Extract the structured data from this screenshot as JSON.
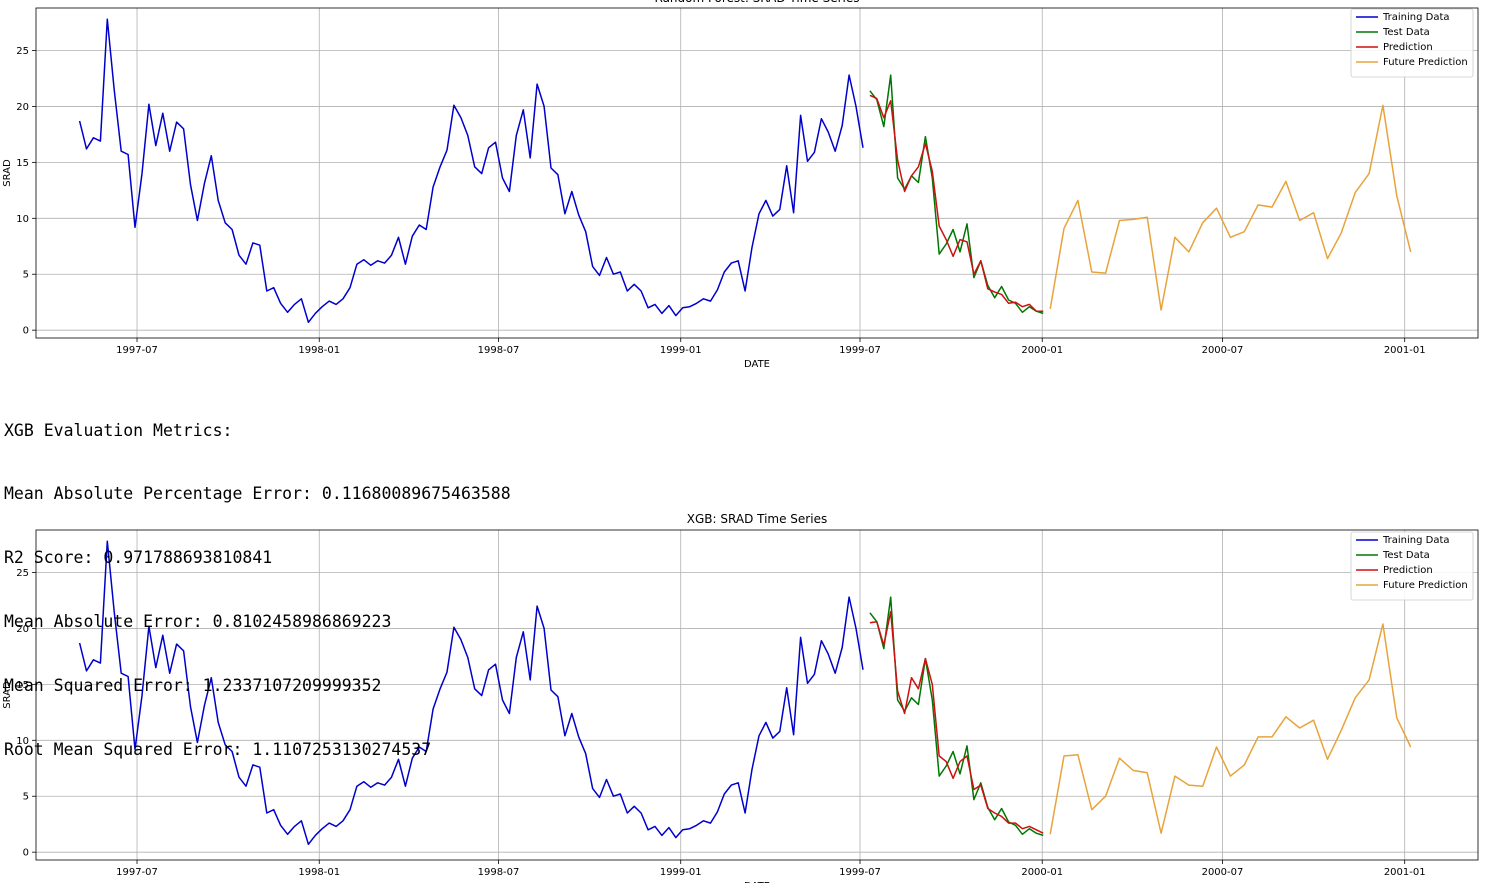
{
  "metrics": {
    "heading": "XGB Evaluation Metrics:",
    "lines": [
      "Mean Absolute Percentage Error: 0.11680089675463588",
      "R2 Score: 0.971788693810841",
      "Mean Absolute Error: 0.8102458986869223",
      "Mean Squared Error: 1.2337107209999352",
      "Root Mean Squared Error: 1.1107253130274537"
    ]
  },
  "chart_data": [
    {
      "type": "line",
      "title": "Random Forest: SRAD Time Series",
      "xlabel": "DATE",
      "ylabel": "SRAD",
      "xlim": [
        "1997-03-21",
        "2001-03-16"
      ],
      "ylim": [
        -0.7,
        28.8
      ],
      "x_ticks": [
        "1997-07",
        "1998-01",
        "1998-07",
        "1999-01",
        "1999-07",
        "2000-01",
        "2000-07",
        "2001-01"
      ],
      "y_ticks": [
        0,
        5,
        10,
        15,
        20,
        25
      ],
      "grid": true,
      "legend": "top-right",
      "series": [
        {
          "name": "Training Data",
          "color": "#0000cc",
          "x": [
            "1997-05-04",
            "1997-05-11",
            "1997-05-18",
            "1997-05-25",
            "1997-06-01",
            "1997-06-08",
            "1997-06-15",
            "1997-06-22",
            "1997-06-29",
            "1997-07-06",
            "1997-07-13",
            "1997-07-20",
            "1997-07-27",
            "1997-08-03",
            "1997-08-10",
            "1997-08-17",
            "1997-08-24",
            "1997-08-31",
            "1997-09-07",
            "1997-09-14",
            "1997-09-21",
            "1997-09-28",
            "1997-10-05",
            "1997-10-12",
            "1997-10-19",
            "1997-10-26",
            "1997-11-02",
            "1997-11-09",
            "1997-11-16",
            "1997-11-23",
            "1997-11-30",
            "1997-12-07",
            "1997-12-14",
            "1997-12-21",
            "1997-12-28",
            "1998-01-04",
            "1998-01-11",
            "1998-01-18",
            "1998-01-25",
            "1998-02-01",
            "1998-02-08",
            "1998-02-15",
            "1998-02-22",
            "1998-03-01",
            "1998-03-08",
            "1998-03-15",
            "1998-03-22",
            "1998-03-29",
            "1998-04-05",
            "1998-04-12",
            "1998-04-19",
            "1998-04-26",
            "1998-05-03",
            "1998-05-10",
            "1998-05-17",
            "1998-05-24",
            "1998-05-31",
            "1998-06-07",
            "1998-06-14",
            "1998-06-21",
            "1998-06-28",
            "1998-07-05",
            "1998-07-12",
            "1998-07-19",
            "1998-07-26",
            "1998-08-02",
            "1998-08-09",
            "1998-08-16",
            "1998-08-23",
            "1998-08-30",
            "1998-09-06",
            "1998-09-13",
            "1998-09-20",
            "1998-09-27",
            "1998-10-04",
            "1998-10-11",
            "1998-10-18",
            "1998-10-25",
            "1998-11-01",
            "1998-11-08",
            "1998-11-15",
            "1998-11-22",
            "1998-11-29",
            "1998-12-06",
            "1998-12-13",
            "1998-12-20",
            "1998-12-27",
            "1999-01-03",
            "1999-01-10",
            "1999-01-17",
            "1999-01-24",
            "1999-01-31",
            "1999-02-07",
            "1999-02-14",
            "1999-02-21",
            "1999-02-28",
            "1999-03-07",
            "1999-03-14",
            "1999-03-21",
            "1999-03-28",
            "1999-04-04",
            "1999-04-11",
            "1999-04-18",
            "1999-04-25",
            "1999-05-02",
            "1999-05-09",
            "1999-05-16",
            "1999-05-23",
            "1999-05-30",
            "1999-06-06",
            "1999-06-13",
            "1999-06-20",
            "1999-06-27",
            "1999-07-04"
          ],
          "y": [
            18.7,
            16.2,
            17.2,
            16.9,
            27.8,
            21.5,
            16.0,
            15.7,
            9.2,
            14.0,
            20.2,
            16.5,
            19.4,
            16.0,
            18.6,
            18.0,
            13.0,
            9.8,
            13.1,
            15.6,
            11.6,
            9.6,
            9.0,
            6.7,
            5.9,
            7.8,
            7.6,
            3.5,
            3.8,
            2.4,
            1.6,
            2.3,
            2.8,
            0.7,
            1.5,
            2.1,
            2.6,
            2.3,
            2.8,
            3.8,
            5.9,
            6.3,
            5.8,
            6.2,
            6.0,
            6.7,
            8.3,
            5.9,
            8.4,
            9.4,
            9.0,
            12.8,
            14.6,
            16.1,
            20.1,
            19.0,
            17.4,
            14.6,
            14.0,
            16.3,
            16.8,
            13.6,
            12.4,
            17.4,
            19.7,
            15.4,
            22.0,
            20.0,
            14.5,
            13.9,
            10.4,
            12.4,
            10.3,
            8.8,
            5.7,
            4.9,
            6.5,
            5.0,
            5.2,
            3.5,
            4.1,
            3.5,
            2.0,
            2.3,
            1.5,
            2.2,
            1.3,
            2.0,
            2.1,
            2.4,
            2.8,
            2.6,
            3.6,
            5.2,
            6.0,
            6.2,
            3.5,
            7.4,
            10.4,
            11.6,
            10.2,
            10.8,
            14.7,
            10.5,
            19.2,
            15.1,
            15.9,
            18.9,
            17.7,
            16.0,
            18.3,
            22.8,
            20.0,
            16.3
          ]
        },
        {
          "name": "Test Data",
          "color": "#007700",
          "x": [
            "1999-07-11",
            "1999-07-18",
            "1999-07-25",
            "1999-08-01",
            "1999-08-08",
            "1999-08-15",
            "1999-08-22",
            "1999-08-29",
            "1999-09-05",
            "1999-09-12",
            "1999-09-19",
            "1999-09-26",
            "1999-10-03",
            "1999-10-10",
            "1999-10-17",
            "1999-10-24",
            "1999-10-31",
            "1999-11-07",
            "1999-11-14",
            "1999-11-21",
            "1999-11-28",
            "1999-12-05",
            "1999-12-12",
            "1999-12-19",
            "1999-12-26",
            "2000-01-02"
          ],
          "y": [
            21.4,
            20.6,
            18.2,
            22.8,
            13.6,
            12.6,
            13.8,
            13.2,
            17.3,
            13.6,
            6.8,
            7.7,
            9.0,
            7.0,
            9.5,
            4.7,
            6.2,
            4.0,
            2.9,
            3.9,
            2.7,
            2.4,
            1.6,
            2.1,
            1.7,
            1.5
          ]
        },
        {
          "name": "Prediction",
          "color": "#cc1111",
          "x": [
            "1999-07-11",
            "1999-07-18",
            "1999-07-25",
            "1999-08-01",
            "1999-08-08",
            "1999-08-15",
            "1999-08-22",
            "1999-08-29",
            "1999-09-05",
            "1999-09-12",
            "1999-09-19",
            "1999-09-26",
            "1999-10-03",
            "1999-10-10",
            "1999-10-17",
            "1999-10-24",
            "1999-10-31",
            "1999-11-07",
            "1999-11-14",
            "1999-11-21",
            "1999-11-28",
            "1999-12-05",
            "1999-12-12",
            "1999-12-19",
            "1999-12-26",
            "2000-01-02"
          ],
          "y": [
            21.0,
            20.7,
            19.0,
            20.5,
            15.2,
            12.4,
            13.8,
            14.6,
            16.7,
            14.2,
            9.3,
            8.1,
            6.6,
            8.1,
            7.9,
            5.0,
            6.2,
            3.7,
            3.4,
            3.2,
            2.4,
            2.5,
            2.1,
            2.3,
            1.7,
            1.7
          ]
        },
        {
          "name": "Future Prediction",
          "color": "#e8a33b",
          "x": [
            "2000-01-09",
            "2000-01-23",
            "2000-02-06",
            "2000-02-20",
            "2000-03-05",
            "2000-03-19",
            "2000-04-02",
            "2000-04-16",
            "2000-04-30",
            "2000-05-14",
            "2000-05-28",
            "2000-06-11",
            "2000-06-25",
            "2000-07-09",
            "2000-07-23",
            "2000-08-06",
            "2000-08-20",
            "2000-09-03",
            "2000-09-17",
            "2000-10-01",
            "2000-10-15",
            "2000-10-29",
            "2000-11-12",
            "2000-11-26",
            "2000-12-10",
            "2000-12-24",
            "2001-01-07"
          ],
          "y": [
            1.9,
            9.1,
            11.6,
            5.2,
            5.1,
            9.8,
            9.9,
            10.1,
            1.8,
            8.3,
            7.0,
            9.6,
            10.9,
            8.3,
            8.8,
            11.2,
            11.0,
            13.3,
            9.8,
            10.5,
            6.4,
            8.7,
            12.3,
            14.0,
            20.1,
            12.0,
            7.0
          ]
        }
      ]
    },
    {
      "type": "line",
      "title": "XGB: SRAD Time Series",
      "xlabel": "DATE",
      "ylabel": "SRAD",
      "xlim": [
        "1997-03-21",
        "2001-03-16"
      ],
      "ylim": [
        -0.7,
        28.8
      ],
      "x_ticks": [
        "1997-07",
        "1998-01",
        "1998-07",
        "1999-01",
        "1999-07",
        "2000-01",
        "2000-07",
        "2001-01"
      ],
      "y_ticks": [
        0,
        5,
        10,
        15,
        20,
        25
      ],
      "grid": true,
      "legend": "top-right",
      "series": [
        {
          "name": "Training Data",
          "color": "#0000cc",
          "x": [
            "1997-05-04",
            "1997-05-11",
            "1997-05-18",
            "1997-05-25",
            "1997-06-01",
            "1997-06-08",
            "1997-06-15",
            "1997-06-22",
            "1997-06-29",
            "1997-07-06",
            "1997-07-13",
            "1997-07-20",
            "1997-07-27",
            "1997-08-03",
            "1997-08-10",
            "1997-08-17",
            "1997-08-24",
            "1997-08-31",
            "1997-09-07",
            "1997-09-14",
            "1997-09-21",
            "1997-09-28",
            "1997-10-05",
            "1997-10-12",
            "1997-10-19",
            "1997-10-26",
            "1997-11-02",
            "1997-11-09",
            "1997-11-16",
            "1997-11-23",
            "1997-11-30",
            "1997-12-07",
            "1997-12-14",
            "1997-12-21",
            "1997-12-28",
            "1998-01-04",
            "1998-01-11",
            "1998-01-18",
            "1998-01-25",
            "1998-02-01",
            "1998-02-08",
            "1998-02-15",
            "1998-02-22",
            "1998-03-01",
            "1998-03-08",
            "1998-03-15",
            "1998-03-22",
            "1998-03-29",
            "1998-04-05",
            "1998-04-12",
            "1998-04-19",
            "1998-04-26",
            "1998-05-03",
            "1998-05-10",
            "1998-05-17",
            "1998-05-24",
            "1998-05-31",
            "1998-06-07",
            "1998-06-14",
            "1998-06-21",
            "1998-06-28",
            "1998-07-05",
            "1998-07-12",
            "1998-07-19",
            "1998-07-26",
            "1998-08-02",
            "1998-08-09",
            "1998-08-16",
            "1998-08-23",
            "1998-08-30",
            "1998-09-06",
            "1998-09-13",
            "1998-09-20",
            "1998-09-27",
            "1998-10-04",
            "1998-10-11",
            "1998-10-18",
            "1998-10-25",
            "1998-11-01",
            "1998-11-08",
            "1998-11-15",
            "1998-11-22",
            "1998-11-29",
            "1998-12-06",
            "1998-12-13",
            "1998-12-20",
            "1998-12-27",
            "1999-01-03",
            "1999-01-10",
            "1999-01-17",
            "1999-01-24",
            "1999-01-31",
            "1999-02-07",
            "1999-02-14",
            "1999-02-21",
            "1999-02-28",
            "1999-03-07",
            "1999-03-14",
            "1999-03-21",
            "1999-03-28",
            "1999-04-04",
            "1999-04-11",
            "1999-04-18",
            "1999-04-25",
            "1999-05-02",
            "1999-05-09",
            "1999-05-16",
            "1999-05-23",
            "1999-05-30",
            "1999-06-06",
            "1999-06-13",
            "1999-06-20",
            "1999-06-27",
            "1999-07-04"
          ],
          "y": [
            18.7,
            16.2,
            17.2,
            16.9,
            27.8,
            21.5,
            16.0,
            15.7,
            9.2,
            14.0,
            20.2,
            16.5,
            19.4,
            16.0,
            18.6,
            18.0,
            13.0,
            9.8,
            13.1,
            15.6,
            11.6,
            9.6,
            9.0,
            6.7,
            5.9,
            7.8,
            7.6,
            3.5,
            3.8,
            2.4,
            1.6,
            2.3,
            2.8,
            0.7,
            1.5,
            2.1,
            2.6,
            2.3,
            2.8,
            3.8,
            5.9,
            6.3,
            5.8,
            6.2,
            6.0,
            6.7,
            8.3,
            5.9,
            8.4,
            9.4,
            9.0,
            12.8,
            14.6,
            16.1,
            20.1,
            19.0,
            17.4,
            14.6,
            14.0,
            16.3,
            16.8,
            13.6,
            12.4,
            17.4,
            19.7,
            15.4,
            22.0,
            20.0,
            14.5,
            13.9,
            10.4,
            12.4,
            10.3,
            8.8,
            5.7,
            4.9,
            6.5,
            5.0,
            5.2,
            3.5,
            4.1,
            3.5,
            2.0,
            2.3,
            1.5,
            2.2,
            1.3,
            2.0,
            2.1,
            2.4,
            2.8,
            2.6,
            3.6,
            5.2,
            6.0,
            6.2,
            3.5,
            7.4,
            10.4,
            11.6,
            10.2,
            10.8,
            14.7,
            10.5,
            19.2,
            15.1,
            15.9,
            18.9,
            17.7,
            16.0,
            18.3,
            22.8,
            20.0,
            16.3
          ]
        },
        {
          "name": "Test Data",
          "color": "#007700",
          "x": [
            "1999-07-11",
            "1999-07-18",
            "1999-07-25",
            "1999-08-01",
            "1999-08-08",
            "1999-08-15",
            "1999-08-22",
            "1999-08-29",
            "1999-09-05",
            "1999-09-12",
            "1999-09-19",
            "1999-09-26",
            "1999-10-03",
            "1999-10-10",
            "1999-10-17",
            "1999-10-24",
            "1999-10-31",
            "1999-11-07",
            "1999-11-14",
            "1999-11-21",
            "1999-11-28",
            "1999-12-05",
            "1999-12-12",
            "1999-12-19",
            "1999-12-26",
            "2000-01-02"
          ],
          "y": [
            21.4,
            20.6,
            18.2,
            22.8,
            13.6,
            12.6,
            13.8,
            13.2,
            17.3,
            13.6,
            6.8,
            7.7,
            9.0,
            7.0,
            9.5,
            4.7,
            6.2,
            4.0,
            2.9,
            3.9,
            2.7,
            2.4,
            1.6,
            2.1,
            1.7,
            1.5
          ]
        },
        {
          "name": "Prediction",
          "color": "#cc1111",
          "x": [
            "1999-07-11",
            "1999-07-18",
            "1999-07-25",
            "1999-08-01",
            "1999-08-08",
            "1999-08-15",
            "1999-08-22",
            "1999-08-29",
            "1999-09-05",
            "1999-09-12",
            "1999-09-19",
            "1999-09-26",
            "1999-10-03",
            "1999-10-10",
            "1999-10-17",
            "1999-10-24",
            "1999-10-31",
            "1999-11-07",
            "1999-11-14",
            "1999-11-21",
            "1999-11-28",
            "1999-12-05",
            "1999-12-12",
            "1999-12-19",
            "1999-12-26",
            "2000-01-02"
          ],
          "y": [
            20.5,
            20.6,
            18.5,
            21.5,
            14.4,
            12.4,
            15.6,
            14.6,
            17.3,
            15.0,
            8.6,
            8.1,
            6.6,
            8.1,
            8.6,
            5.6,
            6.0,
            3.9,
            3.5,
            3.2,
            2.6,
            2.6,
            2.1,
            2.3,
            2.0,
            1.7
          ]
        },
        {
          "name": "Future Prediction",
          "color": "#e8a33b",
          "x": [
            "2000-01-09",
            "2000-01-23",
            "2000-02-06",
            "2000-02-20",
            "2000-03-05",
            "2000-03-19",
            "2000-04-02",
            "2000-04-16",
            "2000-04-30",
            "2000-05-14",
            "2000-05-28",
            "2000-06-11",
            "2000-06-25",
            "2000-07-09",
            "2000-07-23",
            "2000-08-06",
            "2000-08-20",
            "2000-09-03",
            "2000-09-17",
            "2000-10-01",
            "2000-10-15",
            "2000-10-29",
            "2000-11-12",
            "2000-11-26",
            "2000-12-10",
            "2000-12-24",
            "2001-01-07"
          ],
          "y": [
            1.6,
            8.6,
            8.7,
            3.8,
            5.0,
            8.4,
            7.3,
            7.1,
            1.7,
            6.8,
            6.0,
            5.9,
            9.4,
            6.8,
            7.8,
            10.3,
            10.3,
            12.1,
            11.1,
            11.8,
            8.3,
            10.9,
            13.8,
            15.4,
            20.4,
            12.0,
            9.4
          ]
        }
      ]
    }
  ]
}
